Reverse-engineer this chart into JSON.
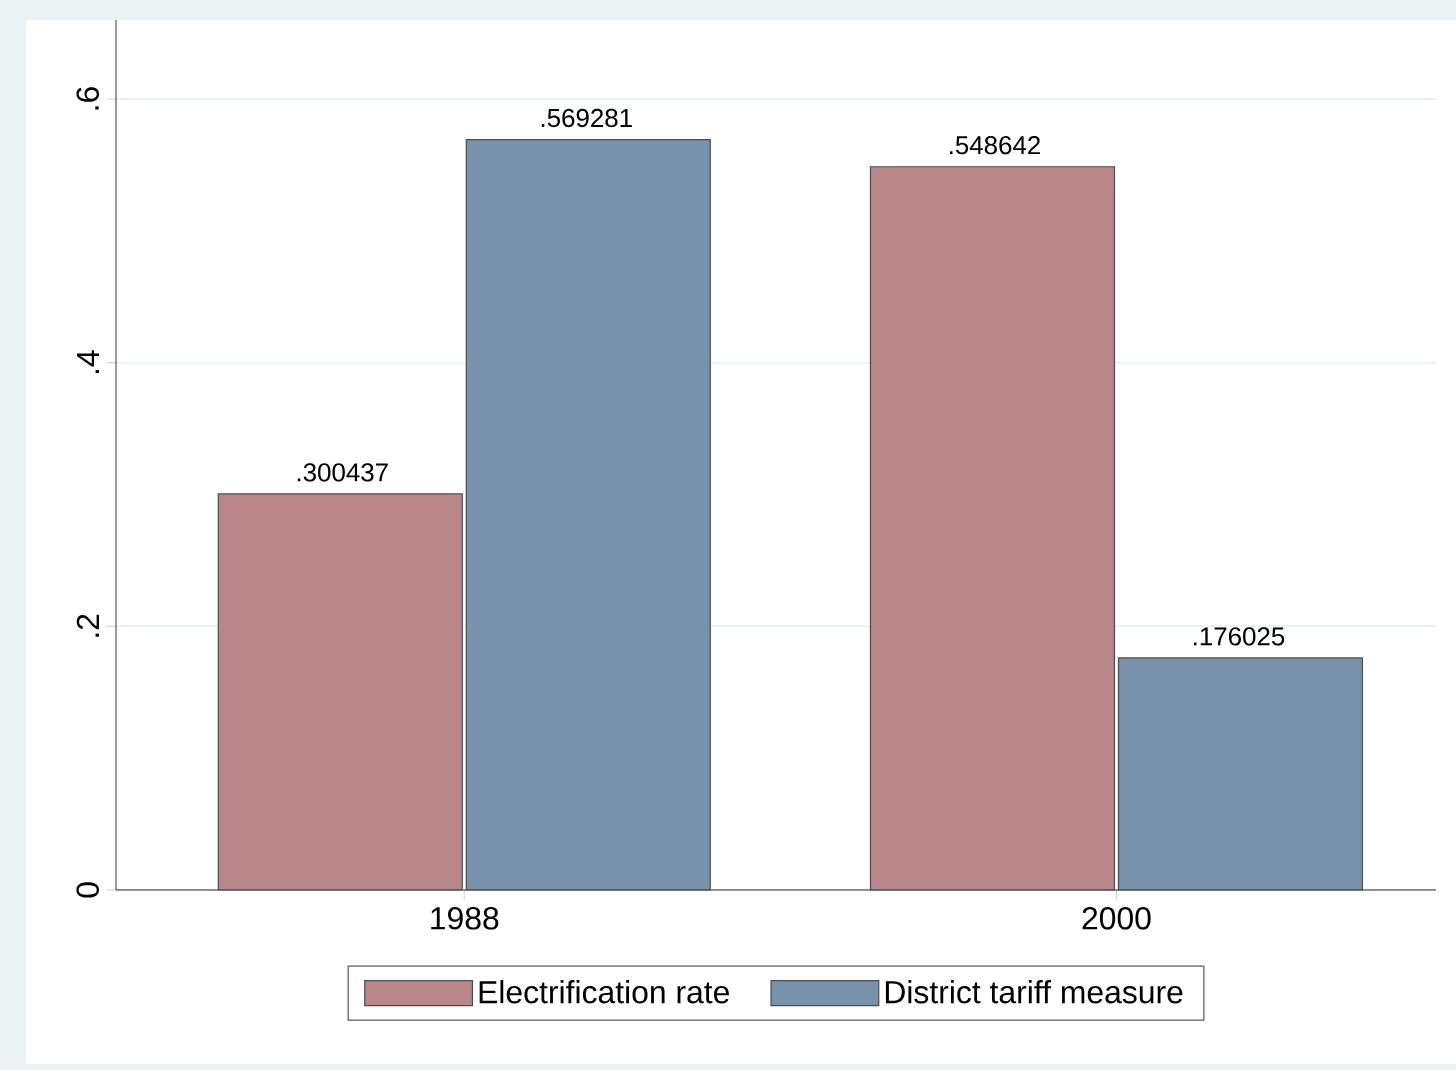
{
  "chart_data": {
    "type": "bar",
    "categories": [
      "1988",
      "2000"
    ],
    "series": [
      {
        "name": "Electrification rate",
        "color": "#b9868a",
        "values": [
          0.300437,
          0.548642
        ],
        "value_labels": [
          ".300437",
          ".548642"
        ]
      },
      {
        "name": "District tariff measure",
        "color": "#7892ab",
        "values": [
          0.569281,
          0.176025
        ],
        "value_labels": [
          ".569281",
          ".176025"
        ]
      }
    ],
    "ylim": [
      0,
      0.66
    ],
    "yticks": [
      0,
      {
        "value": 0.2,
        "label": ".2"
      },
      {
        "value": 0.4,
        "label": ".4"
      },
      {
        "value": 0.6,
        "label": ".6"
      }
    ],
    "grid": "y",
    "legend": "bottom"
  }
}
